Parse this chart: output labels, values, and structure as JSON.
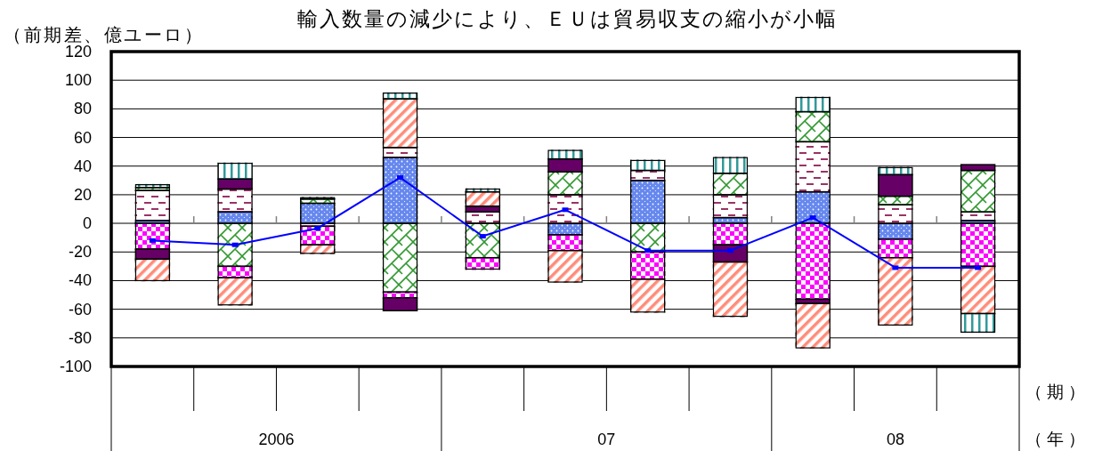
{
  "chart_data": {
    "type": "bar",
    "title": "輸入数量の減少により、ＥＵは貿易収支の縮小が小幅",
    "ylabel": "（前期差、億ユーロ）",
    "xlabel": "（期）",
    "annotations": [
      "2006",
      "07",
      "08",
      "（年）"
    ],
    "categories": [
      null,
      null,
      null,
      null,
      null,
      null,
      null,
      null,
      null,
      null,
      null
    ],
    "stacked": true,
    "grid": "y",
    "marker": "square",
    "ylim": [
      -100,
      120
    ],
    "yticks": [
      -100,
      -80,
      -60,
      -40,
      -20,
      0,
      20,
      40,
      60,
      80,
      100,
      120
    ],
    "series": [
      {
        "color": "#6688ee",
        "values": [
          2,
          8,
          14,
          46,
          null,
          -8,
          30,
          4,
          22,
          -11,
          2
        ]
      },
      {
        "color": "#993366",
        "values": [
          21,
          16,
          -2,
          7,
          8,
          20,
          7,
          16,
          35,
          13,
          6
        ]
      },
      {
        "color": "#339933",
        "values": [
          2,
          -30,
          3,
          -48,
          -24,
          16,
          -20,
          15,
          21,
          6,
          29
        ]
      },
      {
        "color": "#ff00ff",
        "values": [
          -18,
          -8,
          -13,
          -4,
          -8,
          -11,
          -19,
          -15,
          -53,
          -13,
          -30
        ]
      },
      {
        "color": "#660066",
        "values": [
          -7,
          7,
          null,
          -9,
          4,
          9,
          null,
          -12,
          -3,
          15,
          4
        ]
      },
      {
        "color": "#ff8c7a",
        "values": [
          -15,
          -19,
          -6,
          34,
          10,
          -22,
          -23,
          -38,
          -31,
          -47,
          -33
        ]
      },
      {
        "color": "#339999",
        "values": [
          2,
          11,
          1,
          4,
          2,
          6,
          7,
          11,
          10,
          5,
          -13
        ]
      },
      {
        "type": "line",
        "color": "#0000ff",
        "values": [
          -12,
          -15,
          -3.5,
          32,
          -9,
          9.5,
          -19,
          -19,
          4,
          -31,
          -31
        ]
      }
    ]
  }
}
